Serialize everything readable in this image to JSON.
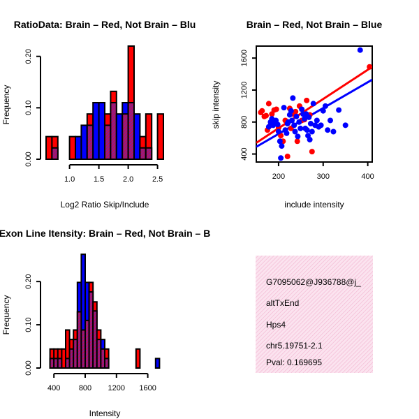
{
  "colors": {
    "red": "#ff0000",
    "blue": "#0000ff",
    "overlap": "#8b1d8b",
    "stripe_bg": "#fbe3ef",
    "stripe_line": "#f2b3cf",
    "pval": "#8b0000"
  },
  "chart_data": [
    {
      "id": "ratio_hist",
      "type": "bar",
      "title": "RatioData: Brain – Red, Not Brain – Blu",
      "xlabel": "Log2 Ratio Skip/Include",
      "ylabel": "Frequency",
      "xlim": [
        0.6,
        2.6
      ],
      "ylim": [
        0,
        0.22
      ],
      "xticks": [
        1.0,
        1.5,
        2.0,
        2.5
      ],
      "xtick_labels": [
        "1.0",
        "1.5",
        "2.0",
        "2.5"
      ],
      "yticks": [
        0.0,
        0.1,
        0.2
      ],
      "ytick_labels": [
        "0.00",
        "0.10",
        "0.20"
      ],
      "bin_width": 0.1,
      "series": [
        {
          "name": "Brain",
          "color": "red",
          "bins": [
            [
              0.6,
              0.044
            ],
            [
              0.7,
              0.044
            ],
            [
              1.0,
              0.044
            ],
            [
              1.3,
              0.088
            ],
            [
              1.6,
              0.088
            ],
            [
              1.7,
              0.132
            ],
            [
              1.9,
              0.088
            ],
            [
              2.0,
              0.22
            ],
            [
              2.2,
              0.044
            ],
            [
              2.3,
              0.088
            ],
            [
              2.5,
              0.088
            ]
          ]
        },
        {
          "name": "Not Brain",
          "color": "blue",
          "bins": [
            [
              0.7,
              0.022
            ],
            [
              1.1,
              0.044
            ],
            [
              1.2,
              0.066
            ],
            [
              1.3,
              0.066
            ],
            [
              1.4,
              0.11
            ],
            [
              1.5,
              0.11
            ],
            [
              1.6,
              0.066
            ],
            [
              1.7,
              0.11
            ],
            [
              1.8,
              0.088
            ],
            [
              1.9,
              0.11
            ],
            [
              2.0,
              0.11
            ],
            [
              2.1,
              0.088
            ],
            [
              2.2,
              0.022
            ],
            [
              2.3,
              0.022
            ]
          ]
        }
      ]
    },
    {
      "id": "scatter",
      "type": "scatter",
      "title": "Brain – Red, Not Brain – Blue",
      "xlabel": "include intensity",
      "ylabel": "skip intensity",
      "xlim": [
        150,
        410
      ],
      "ylim": [
        300,
        1750
      ],
      "xticks": [
        200,
        300,
        400
      ],
      "xtick_labels": [
        "200",
        "300",
        "400"
      ],
      "yticks": [
        400,
        800,
        1200,
        1600
      ],
      "ytick_labels": [
        "400",
        "800",
        "1200",
        "1600"
      ],
      "series": [
        {
          "name": "Brain",
          "color": "red",
          "points": [
            [
              160,
              920
            ],
            [
              163,
              940
            ],
            [
              168,
              870
            ],
            [
              172,
              880
            ],
            [
              175,
              700
            ],
            [
              178,
              1030
            ],
            [
              182,
              760
            ],
            [
              185,
              900
            ],
            [
              190,
              950
            ],
            [
              195,
              960
            ],
            [
              200,
              730
            ],
            [
              205,
              630
            ],
            [
              210,
              560
            ],
            [
              215,
              820
            ],
            [
              220,
              370
            ],
            [
              225,
              970
            ],
            [
              228,
              720
            ],
            [
              233,
              900
            ],
            [
              238,
              930
            ],
            [
              242,
              560
            ],
            [
              247,
              1000
            ],
            [
              252,
              820
            ],
            [
              258,
              830
            ],
            [
              263,
              1070
            ],
            [
              270,
              890
            ],
            [
              275,
              430
            ],
            [
              404,
              1490
            ]
          ],
          "fit": [
            [
              150,
              540
            ],
            [
              410,
              1490
            ]
          ]
        },
        {
          "name": "Not Brain",
          "color": "blue",
          "points": [
            [
              178,
              740
            ],
            [
              182,
              800
            ],
            [
              185,
              840
            ],
            [
              188,
              760
            ],
            [
              191,
              800
            ],
            [
              194,
              820
            ],
            [
              198,
              770
            ],
            [
              200,
              680
            ],
            [
              203,
              560
            ],
            [
              207,
              500
            ],
            [
              212,
              980
            ],
            [
              215,
              700
            ],
            [
              218,
              660
            ],
            [
              220,
              780
            ],
            [
              222,
              800
            ],
            [
              225,
              890
            ],
            [
              228,
              940
            ],
            [
              230,
              820
            ],
            [
              232,
              1100
            ],
            [
              235,
              760
            ],
            [
              237,
              680
            ],
            [
              240,
              870
            ],
            [
              243,
              620
            ],
            [
              246,
              800
            ],
            [
              249,
              720
            ],
            [
              252,
              960
            ],
            [
              255,
              900
            ],
            [
              258,
              840
            ],
            [
              260,
              720
            ],
            [
              262,
              900
            ],
            [
              264,
              700
            ],
            [
              266,
              630
            ],
            [
              268,
              860
            ],
            [
              270,
              580
            ],
            [
              272,
              780
            ],
            [
              275,
              680
            ],
            [
              278,
              1030
            ],
            [
              282,
              760
            ],
            [
              286,
              820
            ],
            [
              290,
              740
            ],
            [
              295,
              760
            ],
            [
              300,
              940
            ],
            [
              305,
              1000
            ],
            [
              310,
              700
            ],
            [
              316,
              820
            ],
            [
              323,
              680
            ],
            [
              335,
              950
            ],
            [
              350,
              760
            ],
            [
              383,
              1700
            ],
            [
              205,
              350
            ]
          ],
          "fit": [
            [
              150,
              490
            ],
            [
              410,
              1330
            ]
          ]
        }
      ]
    },
    {
      "id": "intensity_hist",
      "type": "bar",
      "title": "Exon Line Itensity: Brain – Red, Not Brain – B",
      "xlabel": "Intensity",
      "ylabel": "Frequency",
      "xlim": [
        300,
        1800
      ],
      "ylim": [
        0,
        0.26
      ],
      "xticks": [
        400,
        800,
        1200,
        1600
      ],
      "xtick_labels": [
        "400",
        "800",
        "1200",
        "1600"
      ],
      "yticks": [
        0.0,
        0.1,
        0.2
      ],
      "ytick_labels": [
        "0.00",
        "0.10",
        "0.20"
      ],
      "bin_width": 50,
      "series": [
        {
          "name": "Brain",
          "color": "red",
          "bins": [
            [
              350,
              0.044
            ],
            [
              400,
              0.044
            ],
            [
              450,
              0.044
            ],
            [
              500,
              0.044
            ],
            [
              550,
              0.088
            ],
            [
              600,
              0.066
            ],
            [
              650,
              0.088
            ],
            [
              700,
              0.13
            ],
            [
              750,
              0.088
            ],
            [
              800,
              0.11
            ],
            [
              850,
              0.198
            ],
            [
              900,
              0.153
            ],
            [
              950,
              0.088
            ],
            [
              1000,
              0.044
            ],
            [
              1050,
              0.044
            ],
            [
              1450,
              0.044
            ]
          ]
        },
        {
          "name": "Not Brain",
          "color": "blue",
          "bins": [
            [
              350,
              0.022
            ],
            [
              400,
              0.022
            ],
            [
              450,
              0.022
            ],
            [
              550,
              0.022
            ],
            [
              600,
              0.044
            ],
            [
              650,
              0.066
            ],
            [
              700,
              0.198
            ],
            [
              750,
              0.263
            ],
            [
              800,
              0.198
            ],
            [
              850,
              0.176
            ],
            [
              900,
              0.132
            ],
            [
              950,
              0.066
            ],
            [
              1000,
              0.066
            ],
            [
              1050,
              0.022
            ],
            [
              1700,
              0.022
            ]
          ]
        }
      ]
    }
  ],
  "info_box": {
    "lines": [
      "G7095062@J936788@j_",
      "altTxEnd",
      "Hps4",
      "chr5.19751-2.1"
    ],
    "pval": "Pval: 0.169695"
  }
}
